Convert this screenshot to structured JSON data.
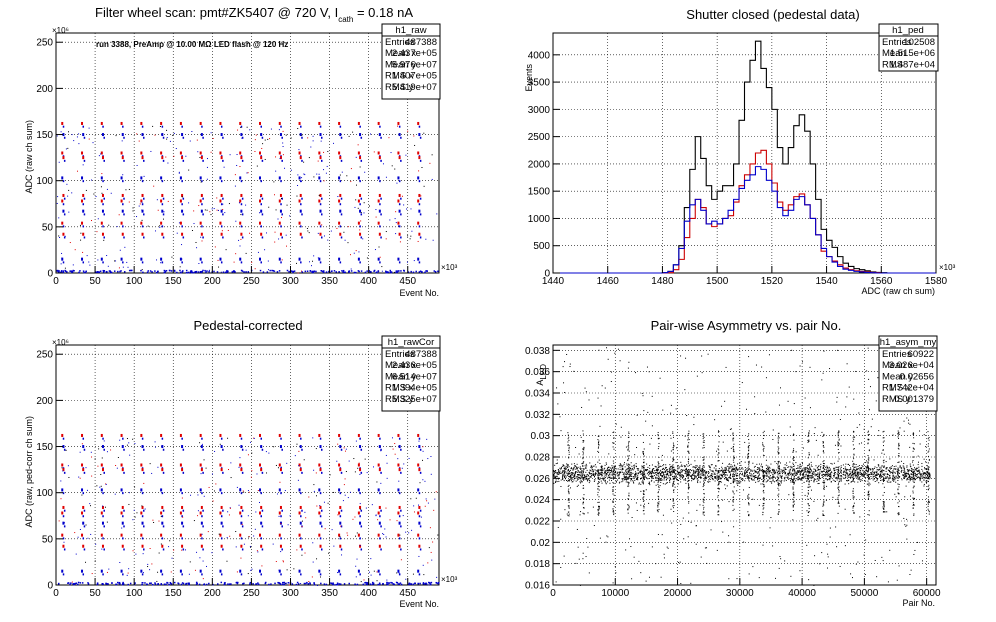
{
  "chart_data": [
    {
      "id": "raw",
      "type": "scatter",
      "title": "Filter wheel scan: pmt#ZK5407 @   720 V, I",
      "title_sub": "cath",
      "title_tail": " = 0.18 nA",
      "annotation": "run 3388, PreAmp @ 10.00 MΩ LED flash @  120 Hz",
      "xlabel": "Event No.",
      "ylabel": "ADC (raw ch sum)",
      "x_exponent": "×10³",
      "y_exponent": "×10⁶",
      "xlim": [
        0,
        490
      ],
      "ylim": [
        0,
        260
      ],
      "xticks": [
        0,
        50,
        100,
        150,
        200,
        250,
        300,
        350,
        400,
        450
      ],
      "yticks": [
        0,
        50,
        100,
        150,
        200,
        250
      ],
      "grid": true,
      "levels": [
        162,
        150,
        130,
        125,
        103,
        84,
        78,
        67,
        54,
        42,
        15
      ],
      "stats": {
        "name": "h1_raw",
        "rows": [
          [
            "Entries",
            "487388"
          ],
          [
            "Mean x",
            "2.437e+05"
          ],
          [
            "Mean y",
            "5.976e+07"
          ],
          [
            "RMS x",
            "1.407e+05"
          ],
          [
            "RMS y",
            "5.419e+07"
          ]
        ]
      },
      "colors": {
        "a": "#e00000",
        "b": "#0000cc",
        "c": "#000000"
      }
    },
    {
      "id": "ped",
      "type": "line",
      "title": "Shutter closed (pedestal data)",
      "xlabel": "ADC (raw ch sum)",
      "ylabel": "Events",
      "x_exponent": "×10³",
      "xlim": [
        1440,
        1580
      ],
      "ylim": [
        0,
        4400
      ],
      "xticks": [
        1440,
        1460,
        1480,
        1500,
        1520,
        1540,
        1560,
        1580
      ],
      "yticks": [
        0,
        500,
        1000,
        1500,
        2000,
        2500,
        3000,
        3500,
        4000
      ],
      "grid": true,
      "bin_start": 1440,
      "bin_width": 2,
      "series": [
        {
          "color": "#000000",
          "values": [
            0,
            0,
            0,
            0,
            0,
            0,
            0,
            0,
            0,
            0,
            0,
            0,
            0,
            0,
            0,
            0,
            0,
            0,
            0,
            0,
            5,
            30,
            150,
            500,
            1200,
            1900,
            2500,
            2100,
            1600,
            1350,
            1500,
            1600,
            1600,
            2000,
            2800,
            3500,
            3900,
            4250,
            3750,
            3400,
            3000,
            2300,
            2000,
            2300,
            2700,
            2900,
            2600,
            2000,
            1350,
            800,
            600,
            470,
            300,
            180,
            120,
            80,
            60,
            40,
            20,
            10,
            5,
            0,
            0,
            0,
            0,
            0,
            0,
            0,
            0,
            0
          ]
        },
        {
          "color": "#cc0000",
          "values": [
            0,
            0,
            0,
            0,
            0,
            0,
            0,
            0,
            0,
            0,
            0,
            0,
            0,
            0,
            0,
            0,
            0,
            0,
            0,
            0,
            0,
            5,
            60,
            250,
            650,
            1000,
            1350,
            1200,
            900,
            850,
            900,
            1000,
            1050,
            1300,
            1600,
            1800,
            2000,
            2200,
            2250,
            2000,
            1650,
            1300,
            1150,
            1250,
            1400,
            1450,
            1250,
            1000,
            700,
            400,
            300,
            220,
            150,
            90,
            60,
            40,
            30,
            20,
            10,
            5,
            0,
            0,
            0,
            0,
            0,
            0,
            0,
            0,
            0,
            0
          ]
        },
        {
          "color": "#0000cc",
          "values": [
            0,
            0,
            0,
            0,
            0,
            0,
            0,
            0,
            0,
            0,
            0,
            0,
            0,
            0,
            0,
            0,
            0,
            0,
            0,
            0,
            5,
            30,
            150,
            450,
            950,
            1250,
            1350,
            1150,
            900,
            950,
            900,
            1000,
            1150,
            1350,
            1550,
            1700,
            1800,
            1950,
            1900,
            1700,
            1500,
            1200,
            1050,
            1150,
            1350,
            1400,
            1250,
            1000,
            700,
            450,
            300,
            200,
            120,
            70,
            50,
            30,
            20,
            10,
            5,
            0,
            0,
            0,
            0,
            0,
            0,
            0,
            0,
            0,
            0,
            0
          ]
        }
      ],
      "stats": {
        "name": "h1_ped",
        "rows": [
          [
            "Entries",
            "102508"
          ],
          [
            "Mean",
            "1.515e+06"
          ],
          [
            "RMS",
            "1.487e+04"
          ]
        ]
      }
    },
    {
      "id": "rawcor",
      "type": "scatter",
      "title": "Pedestal-corrected",
      "xlabel": "Event No.",
      "ylabel": "ADC (raw, ped-corr ch sum)",
      "x_exponent": "×10³",
      "y_exponent": "×10⁶",
      "xlim": [
        0,
        490
      ],
      "ylim": [
        0,
        260
      ],
      "xticks": [
        0,
        50,
        100,
        150,
        200,
        250,
        300,
        350,
        400,
        450
      ],
      "yticks": [
        0,
        50,
        100,
        150,
        200,
        250
      ],
      "grid": true,
      "levels": [
        162,
        150,
        130,
        125,
        103,
        84,
        78,
        67,
        54,
        42,
        15
      ],
      "stats": {
        "name": "h1_rawCor",
        "rows": [
          [
            "Entries",
            "487388"
          ],
          [
            "Mean x",
            "2.436e+05"
          ],
          [
            "Mean y",
            "6.514e+07"
          ],
          [
            "RMS x",
            "1.394e+05"
          ],
          [
            "RMS y",
            "5.325e+07"
          ]
        ]
      },
      "colors": {
        "a": "#e00000",
        "b": "#0000cc",
        "c": "#000000"
      }
    },
    {
      "id": "asym",
      "type": "scatter",
      "title": "Pair-wise Asymmetry vs. pair No.",
      "xlabel": "Pair No.",
      "ylabel": "A",
      "ylabel_sub": "LED",
      "xlim": [
        0,
        61500
      ],
      "ylim": [
        0.016,
        0.0385
      ],
      "xticks": [
        0,
        10000,
        20000,
        30000,
        40000,
        50000,
        60000
      ],
      "yticks": [
        0.016,
        0.018,
        0.02,
        0.022,
        0.024,
        0.026,
        0.028,
        0.03,
        0.032,
        0.034,
        0.036,
        0.038
      ],
      "grid": true,
      "band_center": 0.0265,
      "stats": {
        "name": "h1_asym_my",
        "rows": [
          [
            "Entries",
            "60922"
          ],
          [
            "Mean x",
            "3.026e+04"
          ],
          [
            "Mean y",
            "0.02656"
          ],
          [
            "RMS x",
            "1.742e+04"
          ],
          [
            "RMS y",
            "0.001379"
          ]
        ]
      }
    }
  ]
}
